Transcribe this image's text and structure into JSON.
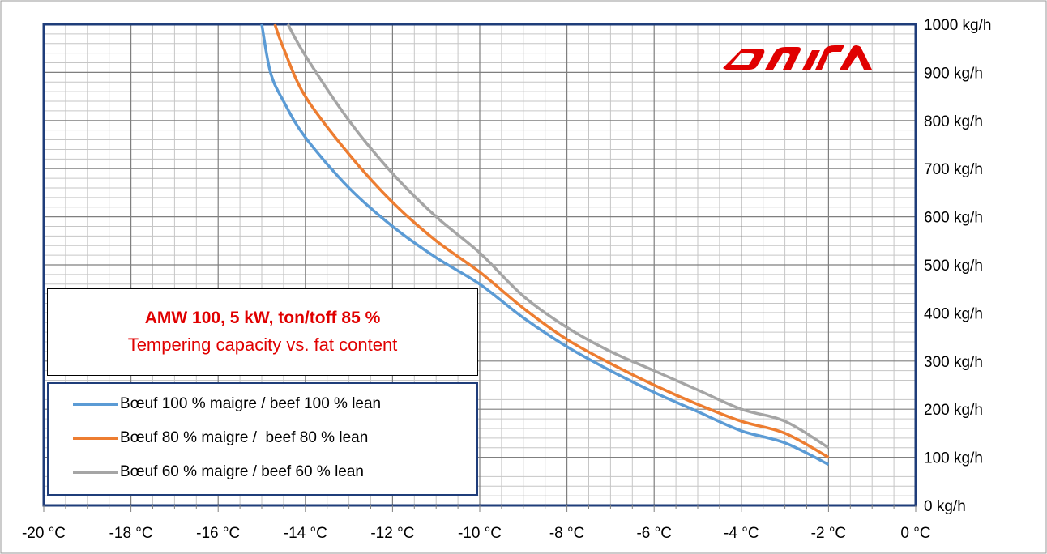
{
  "chart_data": {
    "type": "line",
    "title": "AMW 100, 5 kW, ton/toff 85 %",
    "subtitle": "Tempering capacity vs. fat content",
    "xlim": [
      -20,
      0
    ],
    "ylim": [
      0,
      1000
    ],
    "x_ticks": [
      "-20 °C",
      "-18 °C",
      "-16 °C",
      "-14 °C",
      "-12 °C",
      "-10 °C",
      "-8 °C",
      "-6 °C",
      "-4 °C",
      "-2 °C",
      "0 °C"
    ],
    "y_ticks": [
      "0 kg/h",
      "100 kg/h",
      "200 kg/h",
      "300 kg/h",
      "400 kg/h",
      "500 kg/h",
      "600 kg/h",
      "700 kg/h",
      "800 kg/h",
      "900 kg/h",
      "1000 kg/h"
    ],
    "y_axis_position": "right",
    "grid": true,
    "legend_position": "bottom-left",
    "series": [
      {
        "name": "Bœuf 100 % maigre / beef 100 % lean",
        "color": "#5b9bd5",
        "x": [
          -15.0,
          -14.8,
          -14.5,
          -14.0,
          -13.0,
          -12.0,
          -11.0,
          -10.0,
          -9.0,
          -8.0,
          -7.0,
          -6.0,
          -5.0,
          -4.0,
          -3.0,
          -2.0
        ],
        "y": [
          1000,
          900,
          840,
          765,
          660,
          580,
          515,
          460,
          390,
          330,
          280,
          235,
          195,
          155,
          130,
          85
        ]
      },
      {
        "name": "Bœuf 80 % maigre /  beef 80 % lean",
        "color": "#ed7d31",
        "x": [
          -14.7,
          -14.5,
          -14.0,
          -13.0,
          -12.0,
          -11.0,
          -10.0,
          -9.0,
          -8.0,
          -7.0,
          -6.0,
          -5.0,
          -4.0,
          -3.0,
          -2.0
        ],
        "y": [
          1000,
          950,
          850,
          730,
          630,
          550,
          485,
          410,
          345,
          295,
          250,
          210,
          175,
          150,
          100
        ]
      },
      {
        "name": "Bœuf 60 % maigre / beef 60 % lean",
        "color": "#a5a5a5",
        "x": [
          -14.4,
          -14.0,
          -13.0,
          -12.0,
          -11.0,
          -10.0,
          -9.0,
          -8.0,
          -7.0,
          -6.0,
          -5.0,
          -4.0,
          -3.0,
          -2.0
        ],
        "y": [
          1000,
          935,
          800,
          690,
          600,
          525,
          435,
          370,
          320,
          280,
          240,
          200,
          175,
          120
        ]
      }
    ]
  },
  "logo": {
    "name": "dairem-logo",
    "text": "DAIREM",
    "color": "#e00000"
  }
}
